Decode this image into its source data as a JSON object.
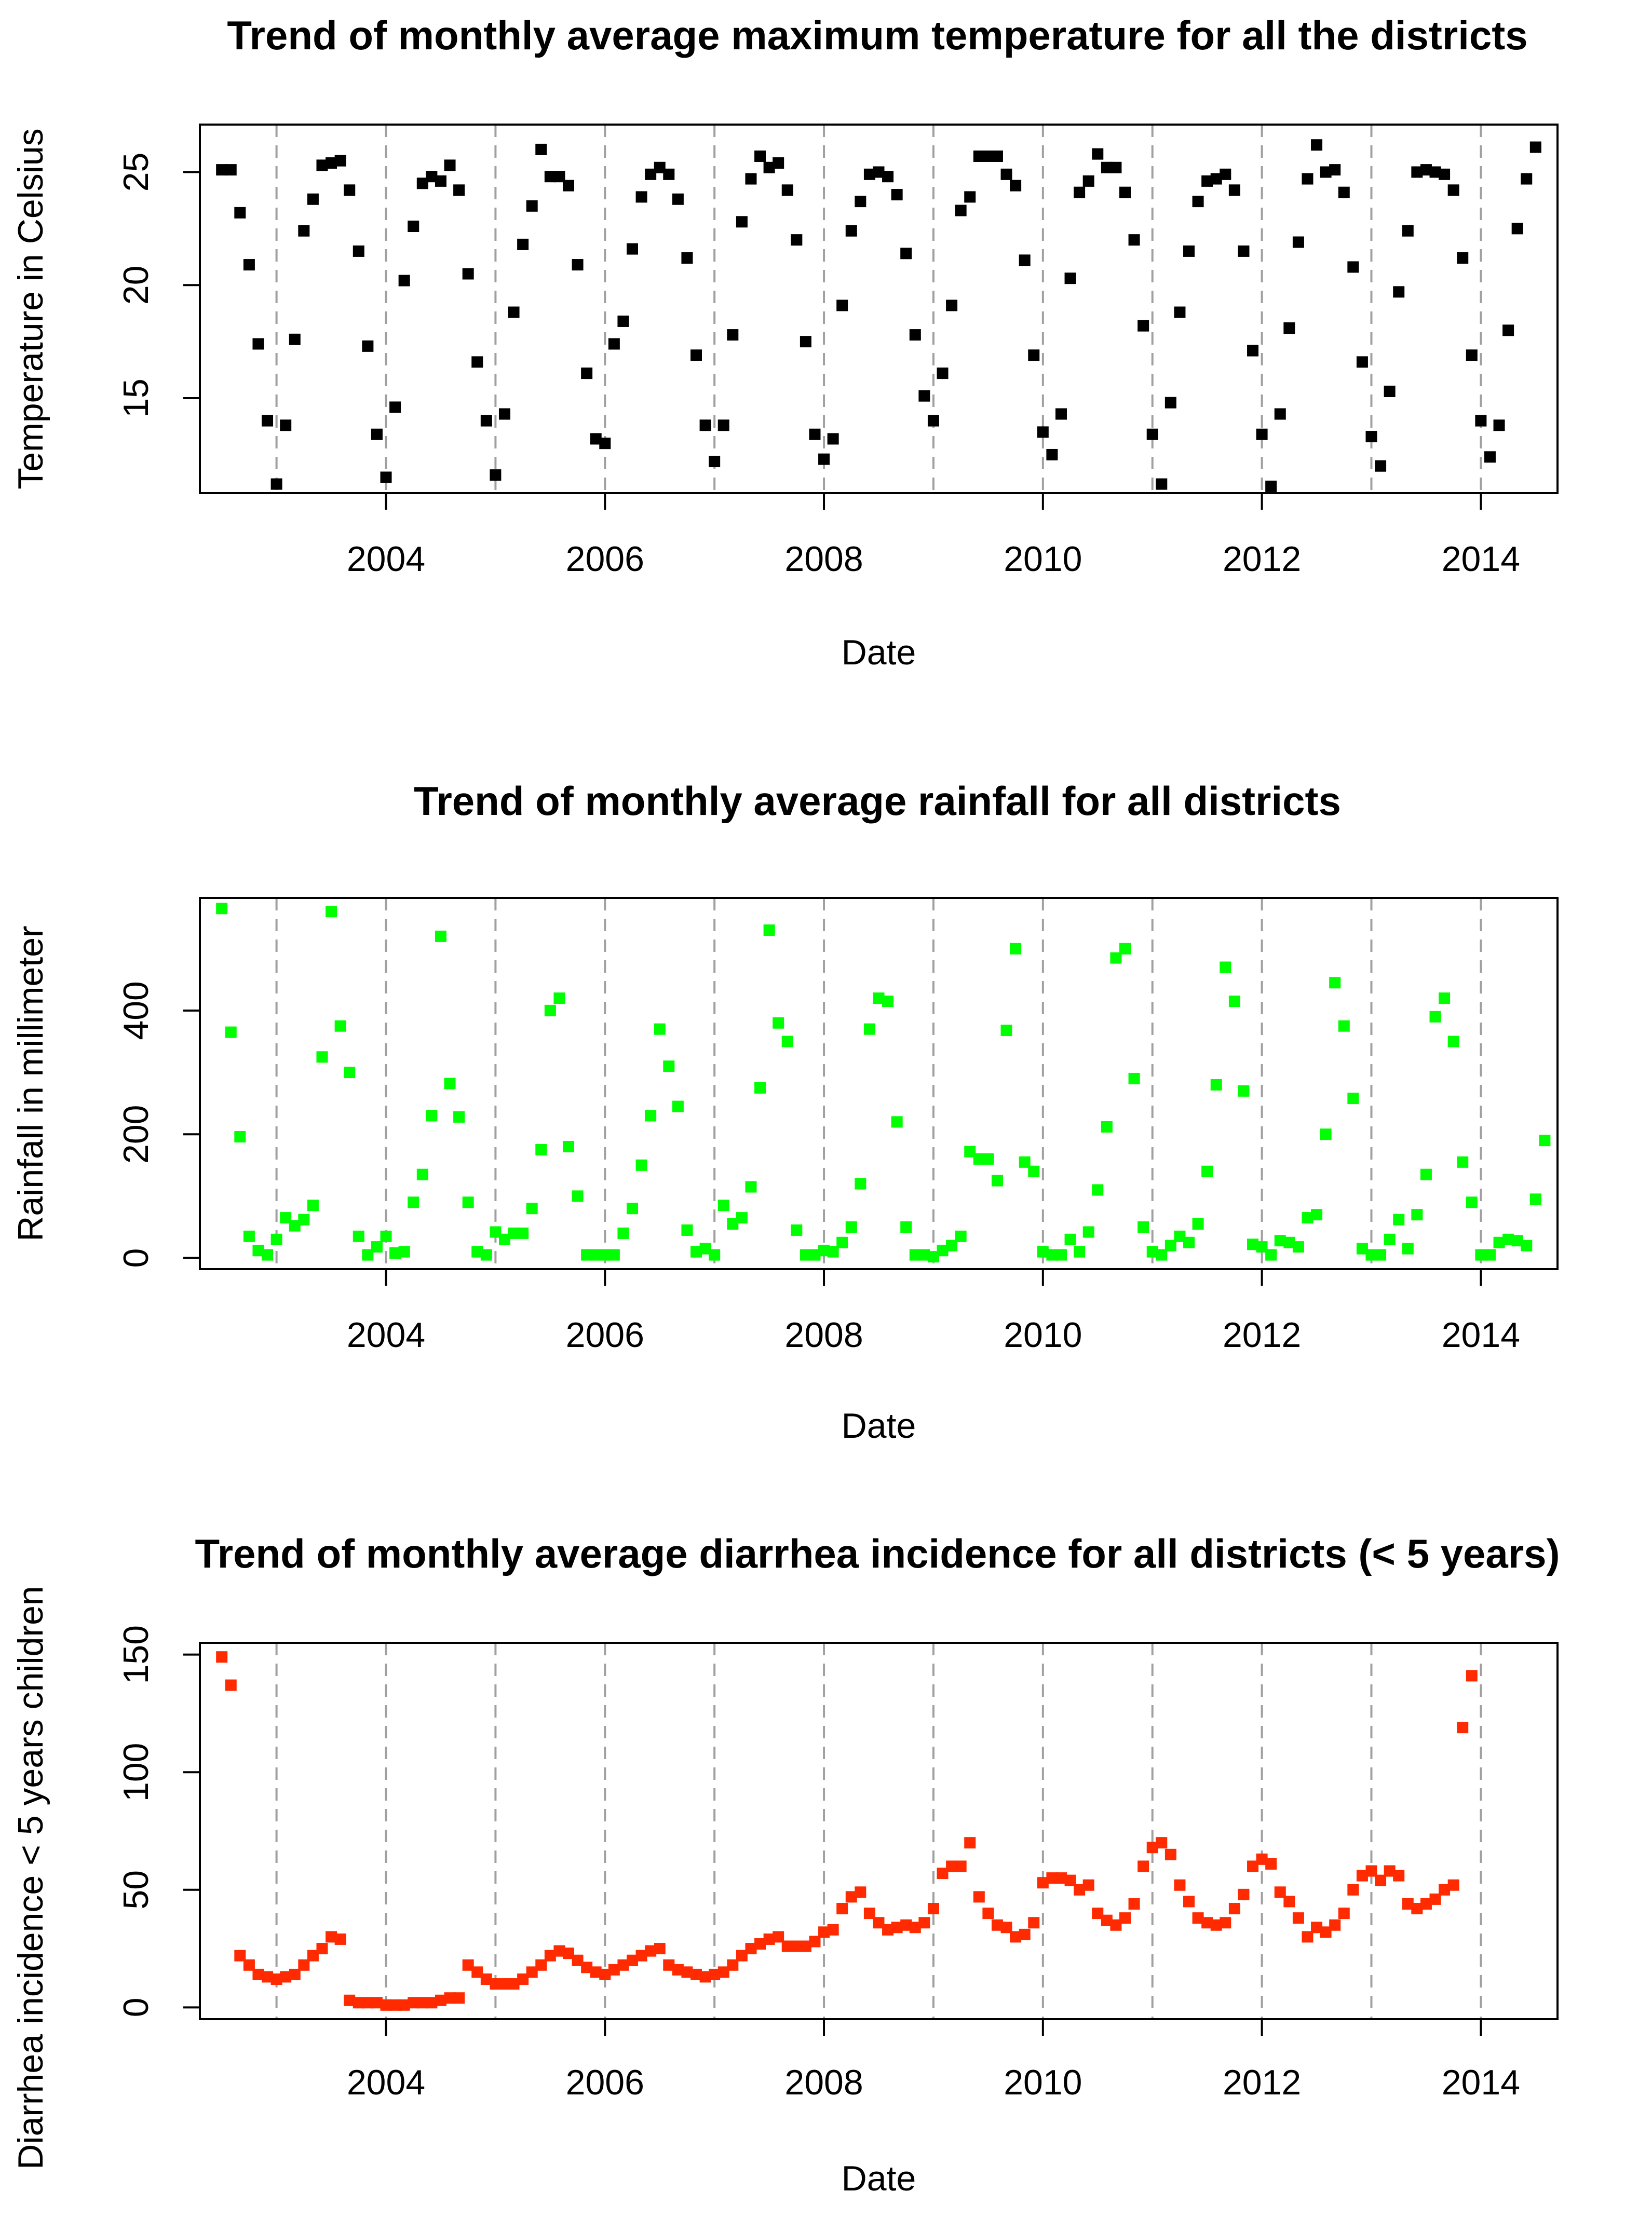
{
  "chart_data": [
    {
      "type": "scatter",
      "title": "Trend of monthly average maximum temperature for all the districts",
      "xlabel": "Date",
      "ylabel": "Temperature in Celsius",
      "xlim": [
        2002.3,
        2014.7
      ],
      "ylim": [
        10.8,
        27.1
      ],
      "xticks": [
        2004,
        2006,
        2008,
        2010,
        2012,
        2014
      ],
      "yticks": [
        15,
        20,
        25
      ],
      "vlines": [
        2003,
        2004,
        2005,
        2006,
        2007,
        2008,
        2009,
        2010,
        2011,
        2012,
        2013,
        2014
      ],
      "color": "#000000",
      "x_start": 2002.5,
      "x_step": 0.0833333,
      "values": [
        25.1,
        25.1,
        23.2,
        20.9,
        17.4,
        14.0,
        11.2,
        13.8,
        17.6,
        22.4,
        23.8,
        25.3,
        25.4,
        25.5,
        24.2,
        21.5,
        17.3,
        13.4,
        11.5,
        14.6,
        20.2,
        22.6,
        24.5,
        24.8,
        24.6,
        25.3,
        24.2,
        20.5,
        16.6,
        14.0,
        11.6,
        14.3,
        18.8,
        21.8,
        23.5,
        26.0,
        24.8,
        24.8,
        24.4,
        20.9,
        16.1,
        13.2,
        13.0,
        17.4,
        18.4,
        21.6,
        23.9,
        24.9,
        25.2,
        24.9,
        23.8,
        21.2,
        16.9,
        13.8,
        12.2,
        13.8,
        17.8,
        22.8,
        24.7,
        25.7,
        25.2,
        25.4,
        24.2,
        22.0,
        17.5,
        13.4,
        12.3,
        13.2,
        19.1,
        22.4,
        23.7,
        24.9,
        25.0,
        24.8,
        24.0,
        21.4,
        17.8,
        15.1,
        14.0,
        16.1,
        19.1,
        23.3,
        23.9,
        25.7,
        25.7,
        25.7,
        24.9,
        24.4,
        21.1,
        16.9,
        13.5,
        12.5,
        14.3,
        20.3,
        24.1,
        24.6,
        25.8,
        25.2,
        25.2,
        24.1,
        22.0,
        18.2,
        13.4,
        11.2,
        14.8,
        18.8,
        21.5,
        23.7,
        24.6,
        24.7,
        24.9,
        24.2,
        21.5,
        17.1,
        13.4,
        11.1,
        14.3,
        18.1,
        21.9,
        24.7,
        26.2,
        25.0,
        25.1,
        24.1,
        20.8,
        16.6,
        13.3,
        12.0,
        15.3,
        19.7,
        22.4,
        25.0,
        25.1,
        25.0,
        24.9,
        24.2,
        21.2,
        16.9,
        14.0,
        12.4,
        13.8,
        18.0,
        22.5,
        24.7,
        26.1
      ]
    },
    {
      "type": "scatter",
      "title": "Trend of monthly average rainfall for all districts",
      "xlabel": "Date",
      "ylabel": "Rainfall in millimeter",
      "xlim": [
        2002.3,
        2014.7
      ],
      "ylim": [
        -18,
        582
      ],
      "xticks": [
        2004,
        2006,
        2008,
        2010,
        2012,
        2014
      ],
      "yticks": [
        0,
        200,
        400
      ],
      "vlines": [
        2003,
        2004,
        2005,
        2006,
        2007,
        2008,
        2009,
        2010,
        2011,
        2012,
        2013,
        2014
      ],
      "color": "#00ff00",
      "x_start": 2002.5,
      "x_step": 0.0833333,
      "values": [
        565,
        365,
        196,
        35,
        12,
        5,
        30,
        65,
        52,
        62,
        85,
        325,
        560,
        375,
        300,
        35,
        5,
        18,
        35,
        8,
        10,
        90,
        135,
        230,
        520,
        282,
        228,
        90,
        10,
        5,
        42,
        30,
        40,
        40,
        80,
        175,
        400,
        420,
        180,
        100,
        5,
        5,
        5,
        5,
        40,
        80,
        150,
        230,
        370,
        310,
        245,
        45,
        10,
        15,
        5,
        85,
        55,
        65,
        115,
        275,
        530,
        380,
        350,
        45,
        5,
        5,
        12,
        10,
        25,
        50,
        120,
        370,
        420,
        415,
        220,
        50,
        5,
        5,
        2,
        12,
        20,
        35,
        172,
        160,
        160,
        125,
        368,
        500,
        155,
        140,
        10,
        5,
        5,
        30,
        10,
        42,
        110,
        212,
        485,
        500,
        290,
        50,
        10,
        5,
        20,
        35,
        25,
        55,
        140,
        280,
        470,
        415,
        270,
        22,
        18,
        5,
        28,
        25,
        18,
        65,
        70,
        200,
        445,
        375,
        258,
        15,
        5,
        5,
        30,
        62,
        15,
        70,
        135,
        390,
        420,
        350,
        155,
        90,
        5,
        5,
        25,
        30,
        28,
        20,
        95,
        190
      ]
    },
    {
      "type": "scatter",
      "title": "Trend of monthly average diarrhea incidence for all districts (< 5 years)",
      "xlabel": "Date",
      "ylabel": "Diarrhea incidence < 5 years children",
      "xlim": [
        2002.3,
        2014.7
      ],
      "ylim": [
        -5,
        155
      ],
      "xticks": [
        2004,
        2006,
        2008,
        2010,
        2012,
        2014
      ],
      "yticks": [
        0,
        50,
        100,
        150
      ],
      "vlines": [
        2003,
        2004,
        2005,
        2006,
        2007,
        2008,
        2009,
        2010,
        2011,
        2012,
        2013,
        2014
      ],
      "color": "#ff2a00",
      "x_start": 2002.5,
      "x_step": 0.0833333,
      "values": [
        149,
        137,
        22,
        18,
        14,
        13,
        12,
        13,
        14,
        18,
        22,
        25,
        30,
        29,
        3,
        2,
        2,
        2,
        1,
        1,
        1,
        2,
        2,
        2,
        3,
        4,
        4,
        18,
        15,
        12,
        10,
        10,
        10,
        12,
        15,
        18,
        22,
        24,
        23,
        20,
        17,
        15,
        14,
        16,
        18,
        20,
        22,
        24,
        25,
        18,
        16,
        15,
        14,
        13,
        14,
        15,
        18,
        22,
        25,
        27,
        29,
        30,
        26,
        26,
        26,
        28,
        32,
        33,
        42,
        47,
        49,
        40,
        36,
        33,
        34,
        35,
        34,
        36,
        42,
        57,
        60,
        60,
        70,
        47,
        40,
        35,
        34,
        30,
        31,
        36,
        53,
        55,
        55,
        54,
        50,
        52,
        40,
        37,
        35,
        38,
        44,
        60,
        68,
        70,
        65,
        52,
        45,
        38,
        36,
        35,
        36,
        42,
        48,
        60,
        63,
        61,
        49,
        45,
        38,
        30,
        34,
        32,
        35,
        40,
        50,
        56,
        58,
        54,
        58,
        56,
        44,
        42,
        44,
        46,
        50,
        52,
        119,
        141
      ]
    }
  ]
}
